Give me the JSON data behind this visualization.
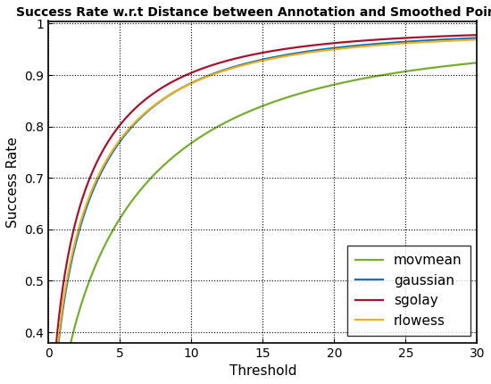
{
  "title": "Success Rate w.r.t Distance between Annotation and Smoothed Points",
  "xlabel": "Threshold",
  "ylabel": "Success Rate",
  "xlim": [
    0,
    30
  ],
  "ylim": [
    0.38,
    1.005
  ],
  "ytick_vals": [
    0.4,
    0.5,
    0.6,
    0.7,
    0.8,
    0.9,
    1.0
  ],
  "ytick_labels": [
    "0.4",
    "0.5",
    "0.6",
    "0.7",
    "0.8",
    "0.9",
    "1"
  ],
  "xticks": [
    0,
    5,
    10,
    15,
    20,
    25,
    30
  ],
  "curves": [
    {
      "label": "movmean",
      "color": "#77ac30",
      "y_max": 0.966,
      "k": 0.38,
      "alpha": 0.62
    },
    {
      "label": "gaussian",
      "color": "#0072bd",
      "y_max": 0.985,
      "k": 0.6,
      "alpha": 0.58
    },
    {
      "label": "sgolay",
      "color": "#a2142f",
      "y_max": 0.988,
      "k": 0.68,
      "alpha": 0.56
    },
    {
      "label": "rlowess",
      "color": "#edb120",
      "y_max": 0.982,
      "k": 0.62,
      "alpha": 0.57
    }
  ],
  "legend_loc": "lower right",
  "background_color": "#ffffff",
  "title_fontsize": 10,
  "axis_label_fontsize": 11,
  "tick_fontsize": 10,
  "legend_fontsize": 11,
  "linewidth": 1.6
}
